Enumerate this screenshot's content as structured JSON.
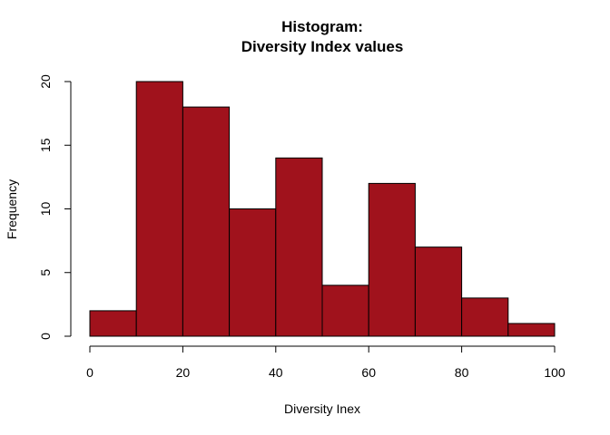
{
  "chart_data": {
    "type": "bar",
    "title": "Histogram:",
    "subtitle": "Diversity Index values",
    "xlabel": "Diversity Inex",
    "ylabel": "Frequency",
    "bin_edges": [
      0,
      10,
      20,
      30,
      40,
      50,
      60,
      70,
      80,
      90,
      100
    ],
    "values": [
      2,
      20,
      18,
      10,
      14,
      4,
      12,
      7,
      3,
      1
    ],
    "xlim": [
      0,
      100
    ],
    "ylim": [
      0,
      20
    ],
    "xticks": [
      0,
      20,
      40,
      60,
      80,
      100
    ],
    "yticks": [
      0,
      5,
      10,
      15,
      20
    ],
    "bar_color": "#a0121c",
    "grid": false
  }
}
